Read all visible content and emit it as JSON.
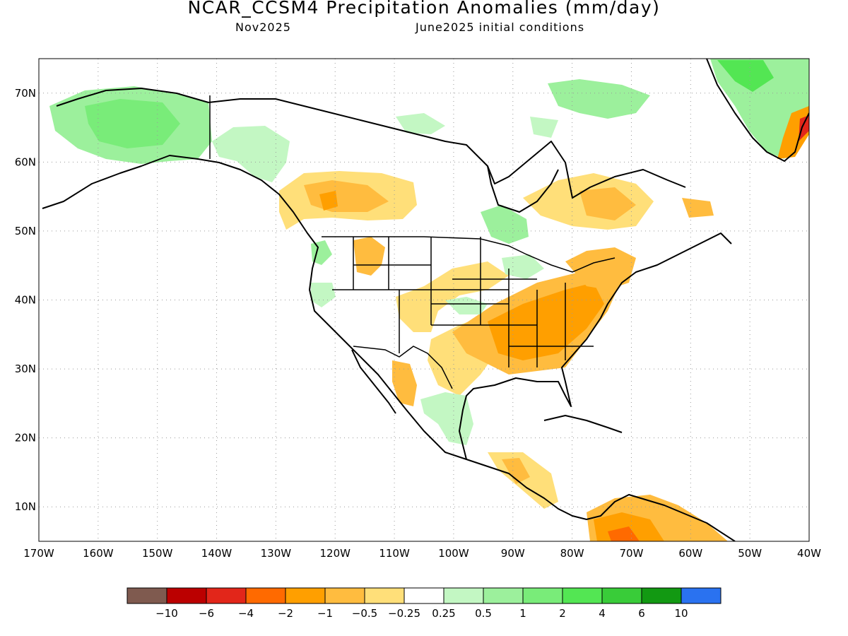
{
  "title": "NCAR_CCSM4 Precipitation Anomalies (mm/day)",
  "subtitle_left": "Nov2025",
  "subtitle_right": "June2025 initial conditions",
  "lat_labels": [
    "70N",
    "60N",
    "50N",
    "40N",
    "30N",
    "20N",
    "10N"
  ],
  "lon_labels": [
    "170W",
    "160W",
    "150W",
    "140W",
    "130W",
    "120W",
    "110W",
    "100W",
    "90W",
    "80W",
    "70W",
    "60W",
    "50W",
    "40W"
  ],
  "colorbar": {
    "colors": [
      "#7f5a4f",
      "#bb0000",
      "#e2261a",
      "#ff6a00",
      "#ff9f00",
      "#ffbc3f",
      "#ffdf79",
      "#ffffff",
      "#c3f7c3",
      "#9cf09c",
      "#79ec79",
      "#53e653",
      "#39cc39",
      "#129912",
      "#2a72f0"
    ],
    "labels": [
      "−10",
      "−6",
      "−4",
      "−2",
      "−1",
      "−0.5",
      "−0.25",
      "0.25",
      "0.5",
      "1",
      "2",
      "4",
      "6",
      "10"
    ]
  }
}
